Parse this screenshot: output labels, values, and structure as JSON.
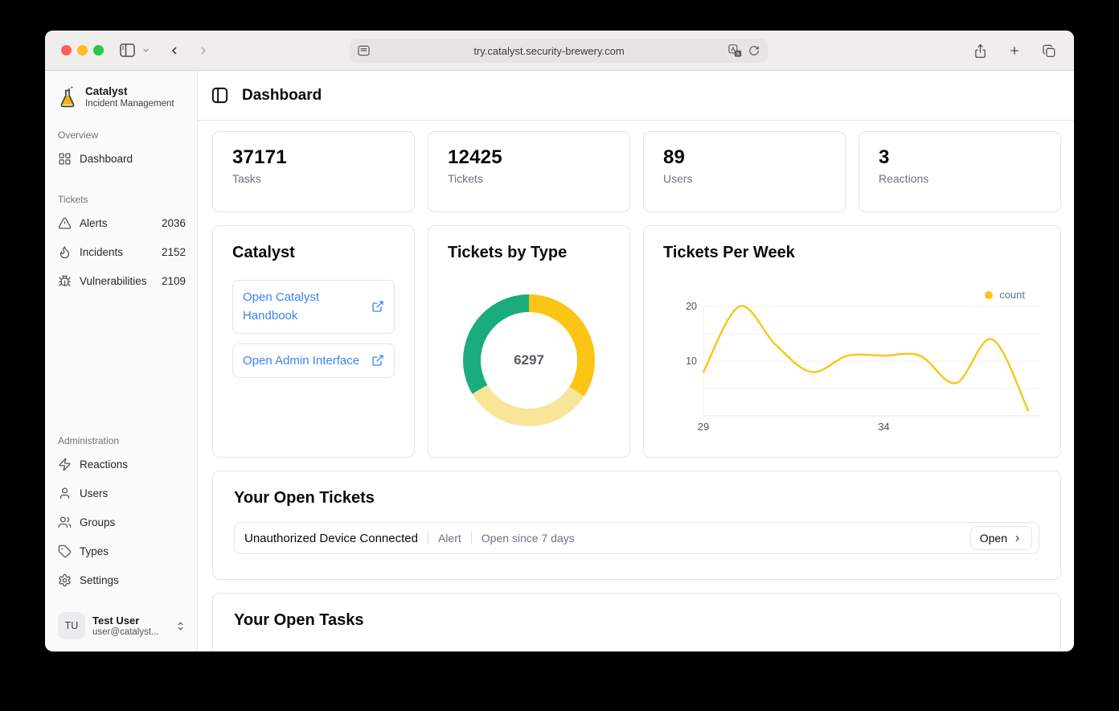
{
  "colors": {
    "accent_blue": "#3b82f6",
    "yellow": "#FAC515",
    "pale_yellow": "#F8E59A",
    "green": "#1AAC7D"
  },
  "browser": {
    "url": "try.catalyst.security-brewery.com"
  },
  "sidebar": {
    "logo": {
      "title": "Catalyst",
      "subtitle": "Incident Management"
    },
    "sections": [
      {
        "label": "Overview",
        "items": [
          {
            "label": "Dashboard"
          }
        ]
      },
      {
        "label": "Tickets",
        "items": [
          {
            "label": "Alerts",
            "count": "2036"
          },
          {
            "label": "Incidents",
            "count": "2152"
          },
          {
            "label": "Vulnerabilities",
            "count": "2109"
          }
        ]
      },
      {
        "label": "Administration",
        "items": [
          {
            "label": "Reactions"
          },
          {
            "label": "Users"
          },
          {
            "label": "Groups"
          },
          {
            "label": "Types"
          },
          {
            "label": "Settings"
          }
        ]
      }
    ],
    "user": {
      "initials": "TU",
      "name": "Test User",
      "email": "user@catalyst..."
    }
  },
  "header": {
    "title": "Dashboard"
  },
  "stats": [
    {
      "value": "37171",
      "label": "Tasks"
    },
    {
      "value": "12425",
      "label": "Tickets"
    },
    {
      "value": "89",
      "label": "Users"
    },
    {
      "value": "3",
      "label": "Reactions"
    }
  ],
  "catalyst_card": {
    "title": "Catalyst",
    "links": [
      {
        "label": "Open Catalyst Handbook"
      },
      {
        "label": "Open Admin Interface"
      }
    ]
  },
  "chart_data": [
    {
      "type": "pie",
      "title": "Tickets by Type",
      "donut": true,
      "center_label": "6297",
      "total": 6297,
      "segments": [
        {
          "value": 2152,
          "color": "#FAC515"
        },
        {
          "value": 2036,
          "color": "#F8E59A"
        },
        {
          "value": 2109,
          "color": "#1AAC7D"
        }
      ]
    },
    {
      "type": "line",
      "title": "Tickets Per Week",
      "legend": [
        {
          "label": "count",
          "color": "#FAC515"
        }
      ],
      "x": [
        29,
        30,
        31,
        32,
        33,
        34,
        35,
        36,
        37,
        38
      ],
      "values": [
        8,
        20,
        13,
        8,
        11,
        11,
        11,
        6,
        14,
        1
      ],
      "x_tick_labels": [
        "29",
        "34"
      ],
      "x_tick_weeks": [
        29,
        34
      ],
      "y_ticks": [
        20,
        10
      ],
      "ylim": [
        0,
        20
      ],
      "grid": "horizontal",
      "line_color": "#FAC515",
      "legend_position": "top-right"
    }
  ],
  "open_tickets": {
    "title": "Your Open Tickets",
    "items": [
      {
        "name": "Unauthorized Device Connected",
        "type": "Alert",
        "status": "Open since 7 days",
        "action": "Open"
      }
    ]
  },
  "open_tasks": {
    "title": "Your Open Tasks"
  }
}
